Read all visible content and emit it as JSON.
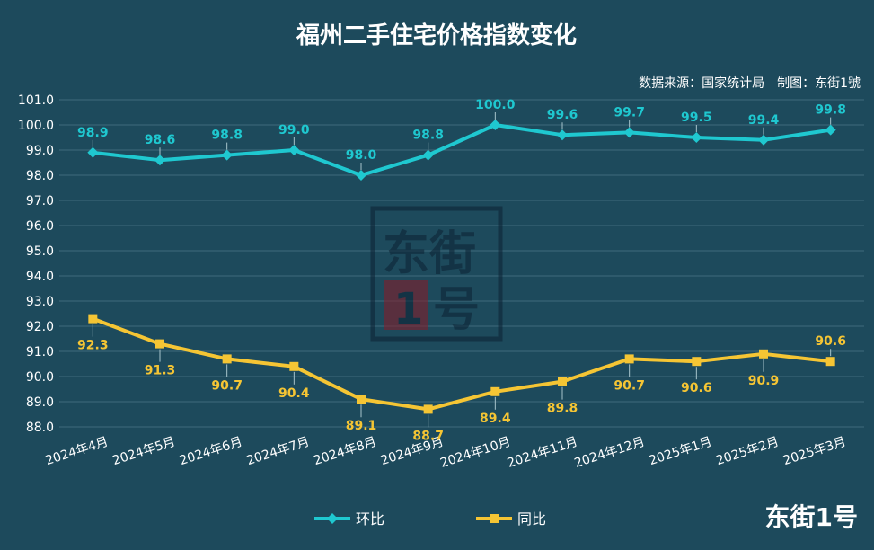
{
  "chart_data": {
    "type": "line",
    "title": "福州二手住宅价格指数变化",
    "source": "数据来源：国家统计局　制图：东街1號",
    "categories": [
      "2024年4月",
      "2024年5月",
      "2024年6月",
      "2024年7月",
      "2024年8月",
      "2024年9月",
      "2024年10月",
      "2024年11月",
      "2024年12月",
      "2025年1月",
      "2025年2月",
      "2025年3月"
    ],
    "series": [
      {
        "name": "环比",
        "color": "#1fc8d0",
        "marker": "diamond",
        "values": [
          98.9,
          98.6,
          98.8,
          99.0,
          98.0,
          98.8,
          100.0,
          99.6,
          99.7,
          99.5,
          99.4,
          99.8
        ]
      },
      {
        "name": "同比",
        "color": "#f5c534",
        "marker": "square",
        "values": [
          92.3,
          91.3,
          90.7,
          90.4,
          89.1,
          88.7,
          89.4,
          89.8,
          90.7,
          90.6,
          90.9,
          90.6
        ]
      }
    ],
    "ylim": [
      88.0,
      101.0
    ],
    "ytick_step": 1.0,
    "grid": true,
    "legend": "bottom-center"
  },
  "watermark": {
    "text_top": "东街",
    "text_bottom": "号",
    "digit": "1"
  },
  "brand": "东街1号"
}
